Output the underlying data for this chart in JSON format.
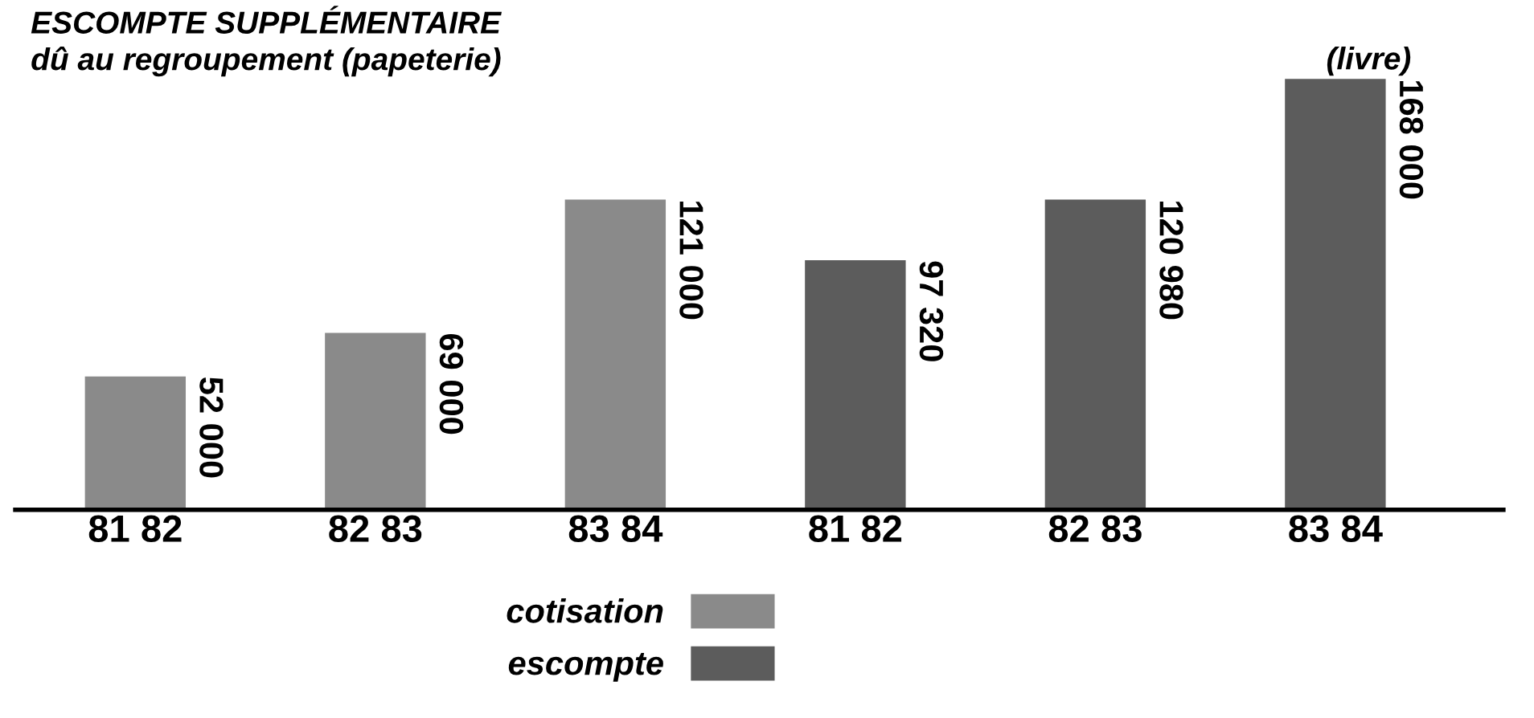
{
  "chart_data": {
    "type": "bar",
    "title": "ESCOMPTE SUPPLÉMENTAIRE",
    "subtitle": "dû au regroupement (papeterie)",
    "categories": [
      "81 82",
      "82 83",
      "83 84",
      "81 82",
      "82 83",
      "83 84"
    ],
    "series": [
      {
        "name": "cotisation",
        "color": "#8a8a8a",
        "values": [
          52000,
          69000,
          121000,
          null,
          null,
          null
        ],
        "value_labels": [
          "52 000",
          "69 000",
          "121 000",
          null,
          null,
          null
        ]
      },
      {
        "name": "escompte",
        "color": "#5c5c5c",
        "values": [
          null,
          null,
          null,
          97320,
          120980,
          168000
        ],
        "value_labels": [
          null,
          null,
          null,
          "97 320",
          "120 980",
          "168 000"
        ]
      }
    ],
    "annotations": [
      "(livre)"
    ],
    "legend": "bottom",
    "grid": false
  }
}
